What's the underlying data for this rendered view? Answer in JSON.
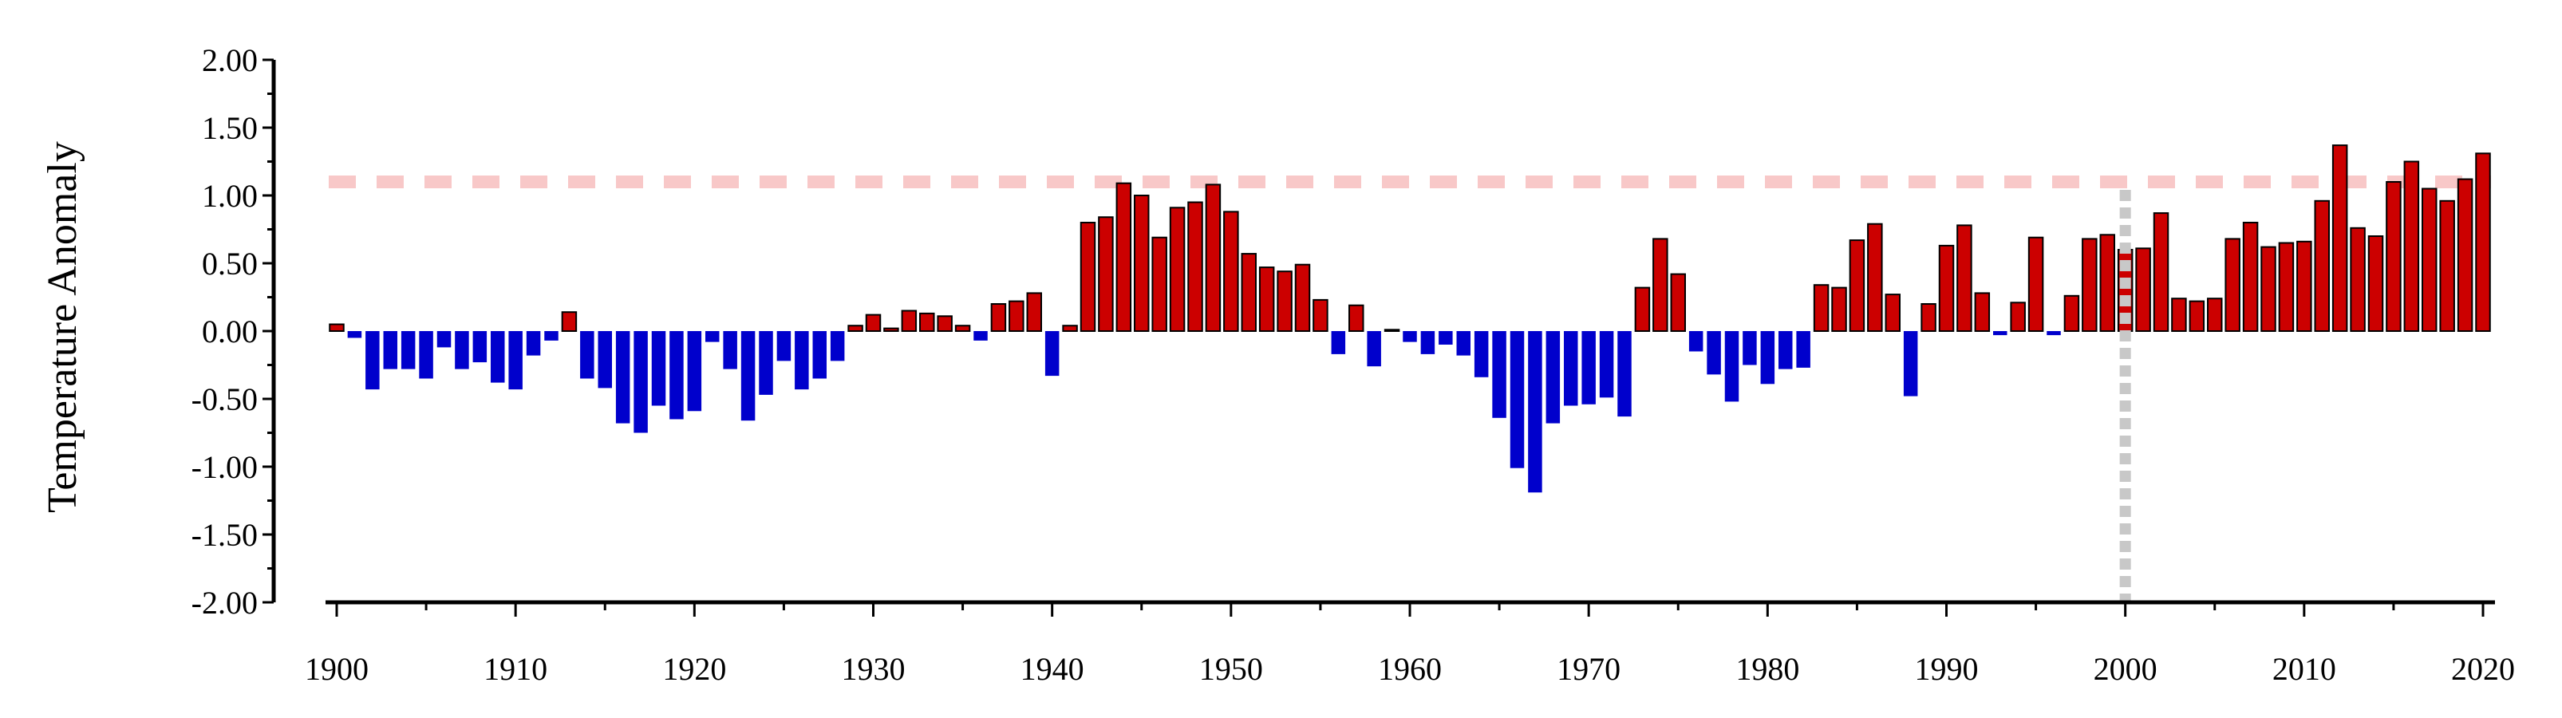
{
  "chart_data": {
    "type": "bar",
    "title": "",
    "xlabel": "",
    "ylabel": "Temperature Anomaly",
    "xlim": [
      1900,
      2020
    ],
    "ylim": [
      -2.0,
      2.0
    ],
    "x_ticks": [
      "1900",
      "1910",
      "1920",
      "1930",
      "1940",
      "1950",
      "1960",
      "1970",
      "1980",
      "1990",
      "2000",
      "2010",
      "2020"
    ],
    "y_ticks": [
      "2.00",
      "1.50",
      "1.00",
      "0.50",
      "0.00",
      "-0.50",
      "-1.00",
      "-1.50",
      "-2.00"
    ],
    "grid": false,
    "legend": "none",
    "colors": {
      "positive": "#cc0000",
      "negative": "#0000cc",
      "reference_line": "#f8c8c8",
      "marker_line": "#c8c8c8"
    },
    "reference_line_value": 1.1,
    "marker_year": 2000,
    "years": [
      1900,
      1901,
      1902,
      1903,
      1904,
      1905,
      1906,
      1907,
      1908,
      1909,
      1910,
      1911,
      1912,
      1913,
      1914,
      1915,
      1916,
      1917,
      1918,
      1919,
      1920,
      1921,
      1922,
      1923,
      1924,
      1925,
      1926,
      1927,
      1928,
      1929,
      1930,
      1931,
      1932,
      1933,
      1934,
      1935,
      1936,
      1937,
      1938,
      1939,
      1940,
      1941,
      1942,
      1943,
      1944,
      1945,
      1946,
      1947,
      1948,
      1949,
      1950,
      1951,
      1952,
      1953,
      1954,
      1955,
      1956,
      1957,
      1958,
      1959,
      1960,
      1961,
      1962,
      1963,
      1964,
      1965,
      1966,
      1967,
      1968,
      1969,
      1970,
      1971,
      1972,
      1973,
      1974,
      1975,
      1976,
      1977,
      1978,
      1979,
      1980,
      1981,
      1982,
      1983,
      1984,
      1985,
      1986,
      1987,
      1988,
      1989,
      1990,
      1991,
      1992,
      1993,
      1994,
      1995,
      1996,
      1997,
      1998,
      1999,
      2000,
      2001,
      2002,
      2003,
      2004,
      2005,
      2006,
      2007,
      2008,
      2009,
      2010,
      2011,
      2012,
      2013,
      2014,
      2015,
      2016,
      2017,
      2018,
      2019,
      2020
    ],
    "values": [
      0.05,
      -0.05,
      -0.43,
      -0.28,
      -0.28,
      -0.35,
      -0.12,
      -0.28,
      -0.23,
      -0.38,
      -0.43,
      -0.18,
      -0.07,
      0.14,
      -0.35,
      -0.42,
      -0.68,
      -0.75,
      -0.55,
      -0.65,
      -0.59,
      -0.08,
      -0.28,
      -0.66,
      -0.47,
      -0.22,
      -0.43,
      -0.35,
      -0.22,
      0.04,
      0.12,
      0.02,
      0.15,
      0.13,
      0.11,
      0.04,
      -0.07,
      0.2,
      0.22,
      0.28,
      -0.33,
      0.04,
      0.8,
      0.84,
      1.09,
      1.0,
      0.69,
      0.91,
      0.95,
      1.08,
      0.88,
      0.57,
      0.47,
      0.44,
      0.49,
      0.23,
      -0.17,
      0.19,
      -0.26,
      0.01,
      -0.08,
      -0.17,
      -0.1,
      -0.18,
      -0.34,
      -0.64,
      -1.01,
      -1.19,
      -0.68,
      -0.55,
      -0.54,
      -0.49,
      -0.63,
      0.32,
      0.68,
      0.42,
      -0.15,
      -0.32,
      -0.52,
      -0.25,
      -0.39,
      -0.28,
      -0.27,
      0.34,
      0.32,
      0.67,
      0.79,
      0.27,
      -0.48,
      0.2,
      0.63,
      0.78,
      0.28,
      -0.03,
      0.21,
      0.69,
      -0.03,
      0.26,
      0.68,
      0.71,
      0.6,
      0.61,
      0.87,
      0.24,
      0.22,
      0.24,
      0.68,
      0.8,
      0.62,
      0.65,
      0.66,
      0.96,
      1.37,
      0.76,
      0.7,
      1.1,
      1.25,
      1.05,
      0.96,
      1.12,
      1.31
    ]
  }
}
